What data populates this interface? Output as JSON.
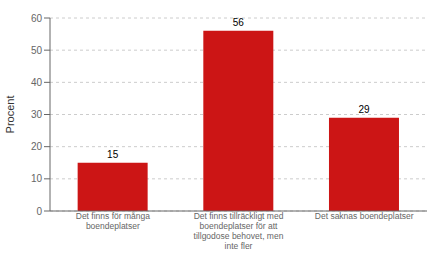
{
  "chart_data": {
    "type": "bar",
    "categories": [
      "Det finns för många\nboendeplatser",
      "Det finns tillräckligt med\nboendeplatser för att\ntillgodose behovet, men\ninte fler",
      "Det saknas boendeplatser"
    ],
    "values": [
      15,
      56,
      29
    ],
    "color": "#cc1515",
    "ylabel": "Procent",
    "ylim": [
      0,
      60
    ],
    "yticks": [
      0,
      10,
      20,
      30,
      40,
      50,
      60
    ],
    "grid": true,
    "data_labels": true
  }
}
